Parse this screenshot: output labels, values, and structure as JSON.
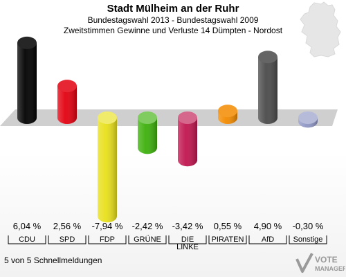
{
  "header": {
    "title": "Stadt Mülheim an der Ruhr",
    "subtitle": "Bundestagswahl 2013 - Bundestagswahl 2009",
    "description": "Zweitstimmen Gewinne und Verluste 14 Dümpten - Nordost"
  },
  "footer": {
    "report_status": "5 von 5 Schnellmeldungen"
  },
  "logo": {
    "text": "VOTE MANAGER"
  },
  "chart_data": {
    "type": "bar",
    "categories": [
      "CDU",
      "SPD",
      "FDP",
      "GRÜNE",
      "DIE LINKE",
      "PIRATEN",
      "AfD",
      "Sonstige"
    ],
    "category_labels": [
      [
        "CDU"
      ],
      [
        "SPD"
      ],
      [
        "FDP"
      ],
      [
        "GRÜNE"
      ],
      [
        "DIE",
        "LINKE"
      ],
      [
        "PIRATEN"
      ],
      [
        "AfD"
      ],
      [
        "Sonstige"
      ]
    ],
    "values": [
      6.04,
      2.56,
      -7.94,
      -2.42,
      -3.42,
      0.55,
      4.9,
      -0.3
    ],
    "value_labels": [
      "6,04 %",
      "2,56 %",
      "-7,94 %",
      "-2,42 %",
      "-3,42 %",
      "0,55 %",
      "4,90 %",
      "-0,30 %"
    ],
    "colors": [
      "#000000",
      "#e3000f",
      "#e8e01a",
      "#3cb00b",
      "#c0154e",
      "#f28a00",
      "#4a4a4a",
      "#8e96c4"
    ],
    "unit": "%"
  }
}
